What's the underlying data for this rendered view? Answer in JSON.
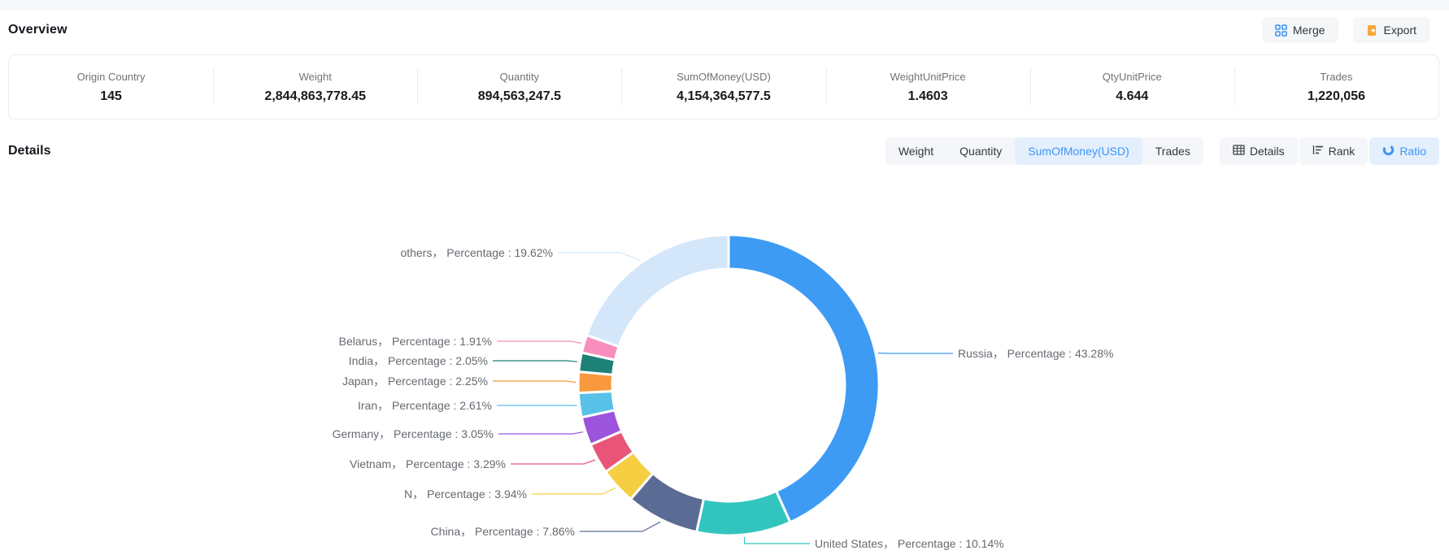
{
  "header": {
    "title": "Overview",
    "merge_label": "Merge",
    "export_label": "Export"
  },
  "stats": [
    {
      "label": "Origin Country",
      "value": "145"
    },
    {
      "label": "Weight",
      "value": "2,844,863,778.45"
    },
    {
      "label": "Quantity",
      "value": "894,563,247.5"
    },
    {
      "label": "SumOfMoney(USD)",
      "value": "4,154,364,577.5"
    },
    {
      "label": "WeightUnitPrice",
      "value": "1.4603"
    },
    {
      "label": "QtyUnitPrice",
      "value": "4.644"
    },
    {
      "label": "Trades",
      "value": "1,220,056"
    }
  ],
  "details": {
    "title": "Details",
    "metric_tabs": [
      {
        "label": "Weight",
        "active": false
      },
      {
        "label": "Quantity",
        "active": false
      },
      {
        "label": "SumOfMoney(USD)",
        "active": true
      },
      {
        "label": "Trades",
        "active": false
      }
    ],
    "view_tabs": [
      {
        "label": "Details",
        "icon": "table-icon",
        "active": false
      },
      {
        "label": "Rank",
        "icon": "rank-bars-icon",
        "active": false
      },
      {
        "label": "Ratio",
        "icon": "donut-icon",
        "active": true
      }
    ]
  },
  "colors": {
    "accent_blue": "#3d94f6",
    "active_tab_bg": "#e4effd",
    "button_bg": "#f5f6f8",
    "export_orange": "#f6a73c",
    "label_text": "#666a70"
  },
  "chart_data": {
    "type": "pie",
    "donut": true,
    "start_angle_deg": 0,
    "direction": "clockwise",
    "label_template": "{name}，  Percentage : {value}%",
    "slices": [
      {
        "name": "Russia",
        "value": 43.28,
        "color": "#3e9bf4"
      },
      {
        "name": "United States",
        "value": 10.14,
        "color": "#32c5be"
      },
      {
        "name": "China",
        "value": 7.86,
        "color": "#5a6c94"
      },
      {
        "name": "N",
        "value": 3.94,
        "color": "#f6ce41"
      },
      {
        "name": "Vietnam",
        "value": 3.29,
        "color": "#e85579"
      },
      {
        "name": "Germany",
        "value": 3.05,
        "color": "#9c54dc"
      },
      {
        "name": "Iran",
        "value": 2.61,
        "color": "#58c1e8"
      },
      {
        "name": "Japan",
        "value": 2.25,
        "color": "#f8993e"
      },
      {
        "name": "India",
        "value": 2.05,
        "color": "#1e8176"
      },
      {
        "name": "Belarus",
        "value": 1.91,
        "color": "#f98ebd"
      },
      {
        "name": "others",
        "value": 19.62,
        "color": "#d4e6f9"
      }
    ]
  }
}
